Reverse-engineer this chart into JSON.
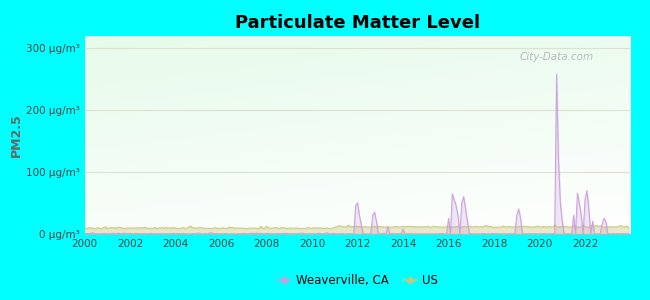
{
  "title": "Particulate Matter Level",
  "ylabel": "PM2.5",
  "background_outer": "#00FFFF",
  "xlim": [
    2000,
    2024
  ],
  "ylim": [
    0,
    320
  ],
  "yticks": [
    0,
    100,
    200,
    300
  ],
  "ytick_labels": [
    "0 μg/m³",
    "100 μg/m³",
    "200 μg/m³",
    "300 μg/m³"
  ],
  "xticks": [
    2000,
    2002,
    2004,
    2006,
    2008,
    2010,
    2012,
    2014,
    2016,
    2018,
    2020,
    2022
  ],
  "weaverville_color": "#c9a0dc",
  "us_color": "#c8c87a",
  "grid_color": "#ddddcc",
  "legend_labels": [
    "Weaverville, CA",
    "US"
  ],
  "watermark": "City-Data.com"
}
